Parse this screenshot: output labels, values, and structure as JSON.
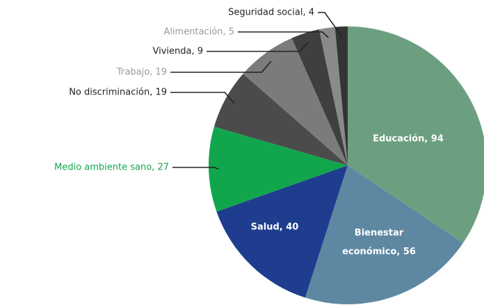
{
  "chart_data": {
    "type": "pie",
    "values": [
      94,
      56,
      40,
      27,
      19,
      19,
      9,
      5,
      4
    ],
    "value_labels": [
      "Educación, 94",
      "Bienestar económico, 56",
      "Salud, 40",
      "Medio ambiente sano, 27",
      "No discriminación, 19",
      "Trabajo, 19",
      "Vivienda, 9",
      "Alimentación, 5",
      "Seguridad social, 4"
    ],
    "colors": [
      "#6c9f7f",
      "#5e88a2",
      "#1f3d8e",
      "#12a64c",
      "#4b4b4b",
      "#7b7b7b",
      "#3f3f3f",
      "#8a8a8a",
      "#343434"
    ]
  }
}
